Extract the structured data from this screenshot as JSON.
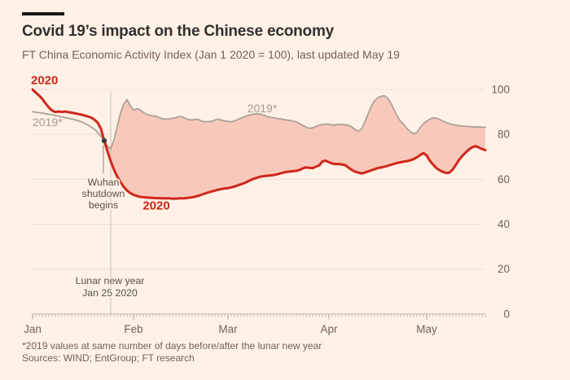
{
  "header": {
    "title": "Covid 19’s impact on the Chinese economy",
    "subtitle": "FT China Economic Activity Index (Jan 1 2020 = 100), last updated May 19"
  },
  "footer": {
    "footnote": "*2019 values at same number of days before/after the lunar new year",
    "sources": "Sources: WIND; EntGroup; FT research"
  },
  "colors": {
    "background": "#fff1e5",
    "red_line": "#d0261c",
    "gray_line": "#aaa198",
    "fill": "#f7c0b0",
    "grid": "#ecdfd0",
    "axis_tick": "#c6bbaf",
    "month_tick": "#a59d93",
    "lunar_line": "#d5c9ba",
    "annotation_line": "#8a827a",
    "dot": "#3c3834",
    "axis_text": "#6b645f"
  },
  "chart_data": {
    "type": "line",
    "title": "FT China Economic Activity Index",
    "x_unit": "days since Jan 1 2020",
    "x_range": [
      0,
      139
    ],
    "ylim": [
      0,
      100
    ],
    "y_ticks": [
      0,
      20,
      40,
      60,
      80,
      100
    ],
    "grid": true,
    "legend_position": "inline-labels",
    "x_months": [
      {
        "label": "Jan",
        "day": 0
      },
      {
        "label": "Feb",
        "day": 31
      },
      {
        "label": "Mar",
        "day": 60
      },
      {
        "label": "Apr",
        "day": 91
      },
      {
        "label": "May",
        "day": 121
      }
    ],
    "series": [
      {
        "name": "2020",
        "values": [
          100,
          98.6,
          97.3,
          95.8,
          93.8,
          92.0,
          90.6,
          90.0,
          90.2,
          90.0,
          90.2,
          89.9,
          89.7,
          89.4,
          89.1,
          88.8,
          88.4,
          88.0,
          87.5,
          86.6,
          85.2,
          82.5,
          77.2,
          72.5,
          68.0,
          64.3,
          61.2,
          58.8,
          56.6,
          55.0,
          53.9,
          53.1,
          52.6,
          52.2,
          52.0,
          51.9,
          51.8,
          51.7,
          51.6,
          51.6,
          51.5,
          51.5,
          51.5,
          51.4,
          51.4,
          51.5,
          51.5,
          51.6,
          51.8,
          52.0,
          52.3,
          52.7,
          53.2,
          53.7,
          54.2,
          54.6,
          55.0,
          55.4,
          55.7,
          55.9,
          56.1,
          56.4,
          56.8,
          57.3,
          57.8,
          58.3,
          59.0,
          59.7,
          60.3,
          60.8,
          61.2,
          61.4,
          61.6,
          61.7,
          61.9,
          62.2,
          62.6,
          63.0,
          63.3,
          63.5,
          63.6,
          63.8,
          64.2,
          64.9,
          65.3,
          65.1,
          65.0,
          65.6,
          66.2,
          68.0,
          68.3,
          67.6,
          67.0,
          66.8,
          66.8,
          66.6,
          66.3,
          65.2,
          64.2,
          63.4,
          63.0,
          62.6,
          63.0,
          63.5,
          64.0,
          64.5,
          65.0,
          65.3,
          65.6,
          66.0,
          66.5,
          66.9,
          67.3,
          67.6,
          67.9,
          68.1,
          68.5,
          69.0,
          69.8,
          70.8,
          71.7,
          70.6,
          68.2,
          66.5,
          65.0,
          64.0,
          63.3,
          62.8,
          63.0,
          64.4,
          66.5,
          68.8,
          70.5,
          72.0,
          73.3,
          74.3,
          74.8,
          74.2,
          73.5,
          73.0
        ]
      },
      {
        "name": "2019*",
        "values": [
          90.1,
          89.9,
          89.7,
          89.5,
          89.2,
          89.0,
          88.7,
          88.4,
          88.1,
          87.8,
          87.5,
          87.2,
          86.9,
          86.5,
          86.1,
          85.6,
          84.9,
          84.2,
          83.3,
          82.3,
          80.9,
          79.2,
          77.2,
          74.8,
          73.6,
          77.5,
          83.5,
          89.5,
          93.5,
          95.5,
          92.8,
          90.8,
          91.5,
          90.9,
          89.8,
          89.0,
          88.5,
          88.2,
          88.1,
          87.4,
          86.9,
          86.8,
          86.9,
          87.2,
          87.4,
          88.0,
          87.8,
          87.1,
          86.6,
          86.4,
          86.7,
          86.6,
          85.9,
          85.6,
          85.7,
          85.8,
          86.4,
          86.8,
          86.3,
          86.0,
          85.8,
          85.6,
          86.0,
          86.6,
          87.2,
          87.9,
          88.3,
          88.8,
          89.1,
          89.2,
          89.0,
          88.5,
          88.0,
          87.6,
          87.4,
          87.1,
          86.9,
          86.7,
          86.4,
          86.2,
          85.9,
          85.6,
          84.8,
          84.0,
          83.2,
          82.7,
          82.9,
          83.5,
          84.1,
          84.5,
          84.6,
          84.5,
          84.2,
          84.3,
          84.5,
          84.4,
          84.3,
          84.0,
          83.4,
          82.2,
          81.3,
          82.5,
          85.5,
          89.0,
          92.5,
          95.0,
          96.3,
          97.0,
          97.2,
          96.2,
          94.0,
          91.0,
          88.0,
          85.8,
          84.3,
          82.5,
          81.2,
          80.3,
          80.9,
          83.0,
          84.8,
          85.9,
          86.8,
          87.4,
          87.2,
          86.6,
          85.9,
          85.3,
          84.8,
          84.4,
          84.1,
          83.9,
          83.7,
          83.6,
          83.5,
          83.4,
          83.3,
          83.3,
          83.2,
          83.2
        ]
      }
    ],
    "fill_between": {
      "from_day": 22,
      "upper": "2019*",
      "lower": "2020"
    },
    "annotations": {
      "wuhan": {
        "text_lines": [
          "Wuhan",
          "shutdown",
          "begins"
        ],
        "day": 22,
        "value": 77.2
      },
      "lunar": {
        "text_lines": [
          "Lunar new year",
          "Jan 25 2020"
        ],
        "day": 24
      }
    },
    "series_labels": [
      {
        "text": "2020",
        "day": -0.5,
        "value": 102.3,
        "anchor": "start",
        "style": "red"
      },
      {
        "text": "2019*",
        "day": 0,
        "value": 83.6,
        "anchor": "start",
        "style": "gray"
      },
      {
        "text": "2019*",
        "day": 70.5,
        "value": 89.8,
        "anchor": "middle",
        "style": "gray"
      },
      {
        "text": "2020",
        "day": 38,
        "value": 46.6,
        "anchor": "middle",
        "style": "red"
      }
    ]
  }
}
